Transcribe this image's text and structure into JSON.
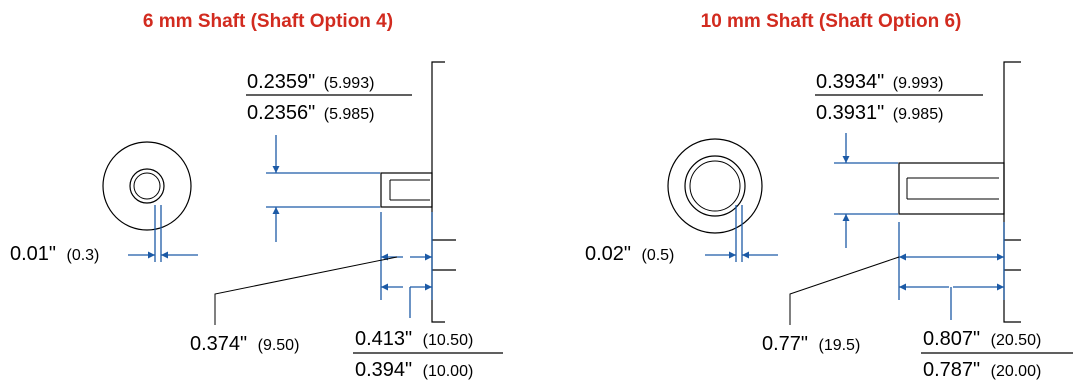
{
  "colors": {
    "title": "#d22b1f",
    "dimension": "#1c5aa6",
    "outline": "#000000"
  },
  "left": {
    "title": "6 mm Shaft  (Shaft Option 4)",
    "dia_max_in": "0.2359\"",
    "dia_max_mm": "(5.993)",
    "dia_min_in": "0.2356\"",
    "dia_min_mm": "(5.985)",
    "runout_in": "0.01\"",
    "runout_mm": "(0.3)",
    "flat_in": "0.374\"",
    "flat_mm": "(9.50)",
    "len_max_in": "0.413\"",
    "len_max_mm": "(10.50)",
    "len_min_in": "0.394\"",
    "len_min_mm": "(10.00)"
  },
  "right": {
    "title": "10 mm Shaft  (Shaft Option 6)",
    "dia_max_in": "0.3934\"",
    "dia_max_mm": "(9.993)",
    "dia_min_in": "0.3931\"",
    "dia_min_mm": "(9.985)",
    "runout_in": "0.02\"",
    "runout_mm": "(0.5)",
    "flat_in": "0.77\"",
    "flat_mm": "(19.5)",
    "len_max_in": "0.807\"",
    "len_max_mm": "(20.50)",
    "len_min_in": "0.787\"",
    "len_min_mm": "(20.00)"
  }
}
